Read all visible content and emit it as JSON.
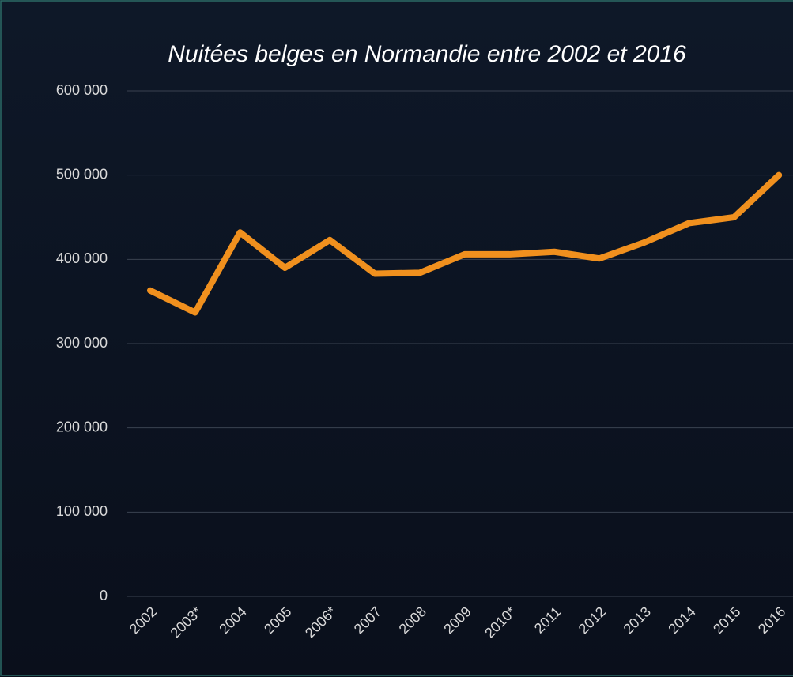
{
  "chart_data": {
    "type": "line",
    "title": "Nuitées belges en Normandie entre 2002 et 2016",
    "categories": [
      "2002",
      "2003*",
      "2004",
      "2005",
      "2006*",
      "2007",
      "2008",
      "2009",
      "2010*",
      "2011",
      "2012",
      "2013",
      "2014",
      "2015",
      "2016"
    ],
    "series": [
      {
        "name": "Nuitées",
        "color": "#f0901e",
        "values": [
          363000,
          337000,
          432000,
          390000,
          423000,
          383000,
          384000,
          406000,
          406000,
          409000,
          401000,
          420000,
          443000,
          450000,
          500000
        ]
      }
    ],
    "ylim": [
      0,
      600000
    ],
    "yticks": [
      0,
      {
        "value": 100000,
        "label": "100 000"
      },
      {
        "value": 200000,
        "label": "200 000"
      },
      {
        "value": 300000,
        "label": "300 000"
      },
      {
        "value": 400000,
        "label": "400 000"
      },
      {
        "value": 500000,
        "label": "500 000"
      },
      {
        "value": 600000,
        "label": "600 000"
      }
    ],
    "grid": true
  }
}
